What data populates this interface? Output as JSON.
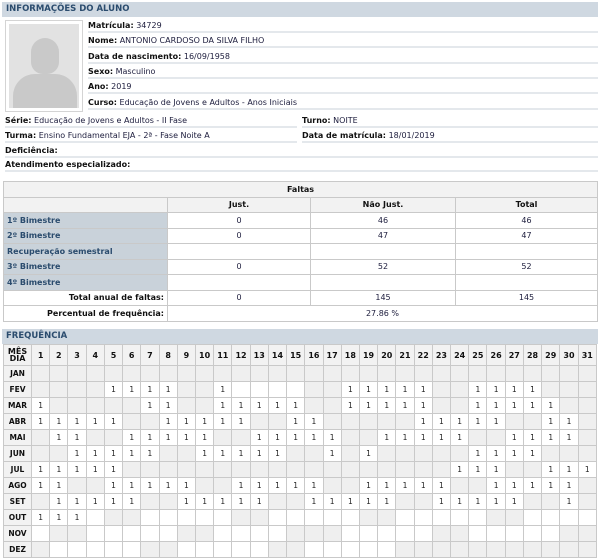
{
  "student_info": {
    "title": "INFORMAÇÕES DO ALUNO",
    "fields": [
      {
        "label": "Matrícula:",
        "value": "34729"
      },
      {
        "label": "Nome:",
        "value": "ANTONIO CARDOSO DA SILVA FILHO"
      },
      {
        "label": "Data de nascimento:",
        "value": "16/09/1958"
      },
      {
        "label": "Sexo:",
        "value": "Masculino"
      },
      {
        "label": "Ano:",
        "value": "2019"
      },
      {
        "label": "Curso:",
        "value": "Educação de Jovens e Adultos - Anos Iniciais"
      }
    ],
    "serie": {
      "label": "Série:",
      "value": "Educação de Jovens e Adultos - II Fase"
    },
    "turno": {
      "label": "Turno:",
      "value": "NOITE"
    },
    "turma": {
      "label": "Turma:",
      "value": "Ensino Fundamental EJA - 2ª - Fase Noite A"
    },
    "data_matricula": {
      "label": "Data de matrícula:",
      "value": "18/01/2019"
    },
    "deficiencia": {
      "label": "Deficiência:",
      "value": ""
    },
    "atendimento": {
      "label": "Atendimento especializado:",
      "value": ""
    }
  },
  "faltas": {
    "title": "Faltas",
    "columns": [
      "Just.",
      "Não Just.",
      "Total"
    ],
    "rows": [
      {
        "label": "1º Bimestre",
        "values": [
          "0",
          "46",
          "46"
        ]
      },
      {
        "label": "2º Bimestre",
        "values": [
          "0",
          "47",
          "47"
        ]
      },
      {
        "label": "Recuperação semestral",
        "values": [
          "",
          "",
          ""
        ]
      },
      {
        "label": "3º Bimestre",
        "values": [
          "0",
          "52",
          "52"
        ]
      },
      {
        "label": "4º Bimestre",
        "values": [
          "",
          "",
          ""
        ]
      }
    ],
    "total": {
      "label": "Total anual de faltas:",
      "values": [
        "0",
        "145",
        "145"
      ]
    },
    "percentual": {
      "label": "Percentual de frequência:",
      "value": "27.86 %"
    }
  },
  "frequencia": {
    "title": "FREQUÊNCIA",
    "corner_label_top": "MÊS",
    "corner_label_bottom": "DIA",
    "absence_mark": "1",
    "months": [
      {
        "name": "JAN",
        "absences": [],
        "no_class": [
          1,
          2,
          3,
          4,
          5,
          6,
          7,
          8,
          9,
          10,
          11,
          12,
          13,
          14,
          15,
          16,
          17,
          18,
          19,
          20,
          21,
          22,
          23,
          24,
          25,
          26,
          27,
          28,
          29,
          30,
          31
        ]
      },
      {
        "name": "FEV",
        "absences": [
          5,
          6,
          7,
          8,
          11,
          18,
          19,
          20,
          21,
          22,
          25,
          26,
          27,
          28
        ],
        "no_class": [
          1,
          2,
          3,
          4,
          9,
          10,
          16,
          17,
          23,
          24,
          29,
          30,
          31
        ]
      },
      {
        "name": "MAR",
        "absences": [
          1,
          7,
          8,
          11,
          12,
          13,
          14,
          15,
          18,
          19,
          20,
          21,
          22,
          25,
          26,
          27,
          28,
          29
        ],
        "no_class": [
          2,
          3,
          4,
          5,
          6,
          9,
          10,
          16,
          17,
          23,
          24,
          30,
          31
        ]
      },
      {
        "name": "ABR",
        "absences": [
          1,
          2,
          3,
          4,
          5,
          8,
          9,
          10,
          11,
          12,
          15,
          16,
          22,
          23,
          24,
          25,
          26,
          29,
          30
        ],
        "no_class": [
          6,
          7,
          13,
          14,
          17,
          18,
          19,
          20,
          21,
          27,
          28,
          31
        ]
      },
      {
        "name": "MAI",
        "absences": [
          2,
          3,
          6,
          7,
          8,
          9,
          10,
          13,
          14,
          15,
          16,
          17,
          20,
          21,
          22,
          23,
          24,
          27,
          28,
          29,
          30
        ],
        "no_class": [
          1,
          4,
          5,
          11,
          12,
          18,
          19,
          25,
          26,
          31
        ]
      },
      {
        "name": "JUN",
        "absences": [
          3,
          4,
          5,
          6,
          7,
          10,
          11,
          12,
          13,
          14,
          17,
          19,
          25,
          26,
          27,
          28
        ],
        "no_class": [
          1,
          2,
          8,
          9,
          15,
          16,
          18,
          20,
          21,
          22,
          23,
          24,
          29,
          30,
          31
        ]
      },
      {
        "name": "JUL",
        "absences": [
          1,
          2,
          3,
          4,
          5,
          24,
          25,
          26,
          29,
          30,
          31
        ],
        "no_class": [
          6,
          7,
          8,
          9,
          10,
          11,
          12,
          13,
          14,
          15,
          16,
          17,
          18,
          19,
          20,
          21,
          22,
          23,
          27,
          28
        ]
      },
      {
        "name": "AGO",
        "absences": [
          1,
          2,
          5,
          6,
          7,
          8,
          9,
          12,
          13,
          14,
          15,
          16,
          19,
          20,
          21,
          22,
          23,
          26,
          27,
          28,
          29,
          30
        ],
        "no_class": [
          3,
          4,
          10,
          11,
          17,
          18,
          24,
          25,
          31
        ]
      },
      {
        "name": "SET",
        "absences": [
          2,
          3,
          4,
          5,
          6,
          9,
          10,
          11,
          12,
          13,
          16,
          17,
          18,
          19,
          20,
          23,
          24,
          25,
          26,
          27,
          30
        ],
        "no_class": [
          1,
          7,
          8,
          14,
          15,
          21,
          22,
          28,
          29,
          31
        ]
      },
      {
        "name": "OUT",
        "absences": [
          1,
          2,
          3
        ],
        "no_class": [
          5,
          6,
          12,
          13,
          19,
          20,
          26,
          27
        ]
      },
      {
        "name": "NOV",
        "absences": [],
        "no_class": [
          2,
          3,
          9,
          10,
          15,
          16,
          17,
          23,
          24,
          30,
          31
        ]
      },
      {
        "name": "DEZ",
        "absences": [],
        "no_class": [
          1,
          7,
          8,
          14,
          15,
          21,
          22,
          23,
          24,
          25,
          26,
          27,
          28,
          29,
          30,
          31
        ]
      }
    ]
  }
}
